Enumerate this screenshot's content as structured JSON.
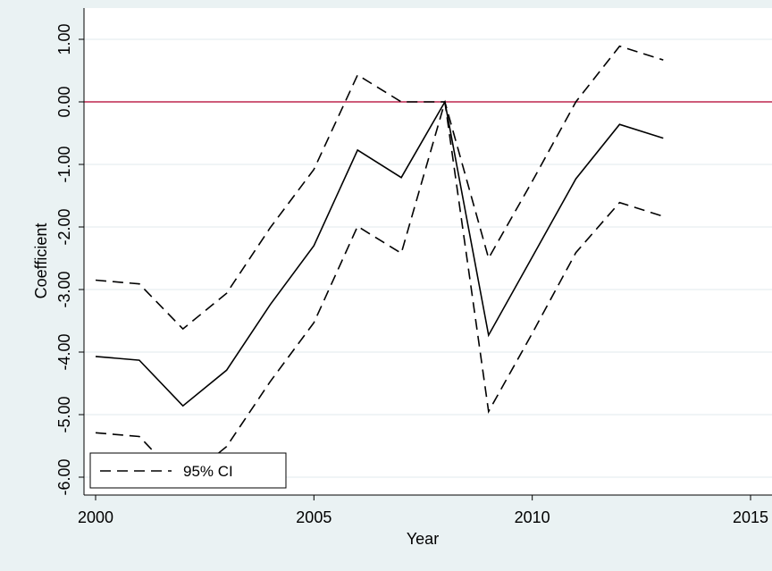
{
  "chart_data": {
    "type": "line",
    "title": "",
    "xlabel": "Year",
    "ylabel": "Coefficient",
    "xlim": [
      2000,
      2015
    ],
    "ylim": [
      -6.0,
      1.0
    ],
    "x_ticks": [
      2000,
      2005,
      2010,
      2015
    ],
    "x_tick_labels": [
      "2000",
      "2005",
      "2010",
      "2015"
    ],
    "y_ticks": [
      -6.0,
      -5.0,
      -4.0,
      -3.0,
      -2.0,
      -1.0,
      0.0,
      1.0
    ],
    "y_tick_labels": [
      "-6.00",
      "-5.00",
      "-4.00",
      "-3.00",
      "-2.00",
      "-1.00",
      "0.00",
      "1.00"
    ],
    "grid": "horizontal",
    "reference_line": {
      "y": 0,
      "color": "#c0264f"
    },
    "series": [
      {
        "style": "solid",
        "color": "#000000",
        "x": [
          2000,
          2001,
          2002,
          2003,
          2004,
          2005,
          2006,
          2007,
          2008,
          2009,
          2010,
          2011,
          2012,
          2013
        ],
        "y": [
          -4.07,
          -4.13,
          -4.86,
          -4.29,
          -3.24,
          -2.3,
          -0.77,
          -1.21,
          0.0,
          -3.73,
          -2.48,
          -1.23,
          -0.36,
          -0.58
        ]
      },
      {
        "name": "95% CI",
        "style": "dashed",
        "color": "#000000",
        "x": [
          2000,
          2001,
          2002,
          2003,
          2004,
          2005,
          2006,
          2007,
          2008,
          2009,
          2010,
          2011,
          2012,
          2013
        ],
        "y": [
          -2.85,
          -2.91,
          -3.63,
          -3.06,
          -2.01,
          -1.08,
          0.43,
          0.0,
          0.0,
          -2.5,
          -1.27,
          0.0,
          0.89,
          0.67
        ]
      },
      {
        "style": "dashed",
        "color": "#000000",
        "x": [
          2000,
          2001,
          2002,
          2003,
          2004,
          2005,
          2006,
          2007,
          2008,
          2009,
          2010,
          2011,
          2012,
          2013
        ],
        "y": [
          -5.29,
          -5.35,
          -6.08,
          -5.51,
          -4.47,
          -3.53,
          -1.99,
          -2.42,
          0.0,
          -4.95,
          -3.7,
          -2.41,
          -1.61,
          -1.83
        ]
      }
    ],
    "legend": {
      "position": "bottom-left",
      "entries": [
        "95% CI"
      ]
    }
  }
}
